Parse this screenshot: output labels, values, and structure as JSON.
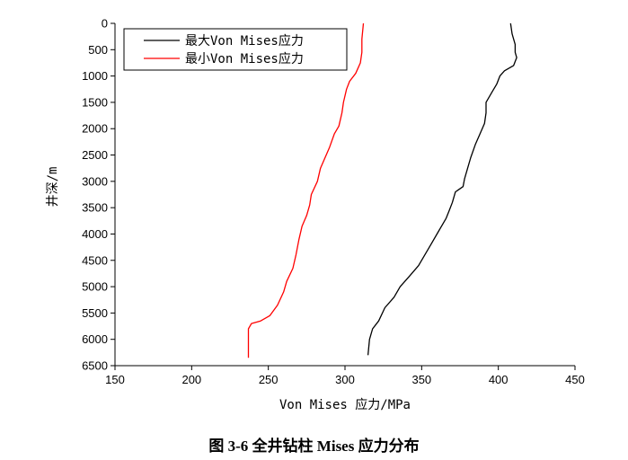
{
  "caption": "图 3-6 全井钻柱 Mises 应力分布",
  "chart_data": {
    "type": "line",
    "xlabel": "Von Mises 应力/MPa",
    "ylabel": "井深/m",
    "xlim": [
      150,
      450
    ],
    "ylim": [
      0,
      6500
    ],
    "y_inverted": true,
    "x_ticks": [
      150,
      200,
      250,
      300,
      350,
      400,
      450
    ],
    "y_ticks": [
      0,
      500,
      1000,
      1500,
      2000,
      2500,
      3000,
      3500,
      4000,
      4500,
      5000,
      5500,
      6000,
      6500
    ],
    "grid": false,
    "legend_position": "top-left",
    "series": [
      {
        "name": "最大Von Mises应力",
        "color": "#000000",
        "points": [
          [
            408,
            0
          ],
          [
            409,
            200
          ],
          [
            411,
            400
          ],
          [
            411,
            550
          ],
          [
            412,
            650
          ],
          [
            410,
            800
          ],
          [
            404,
            900
          ],
          [
            401,
            1000
          ],
          [
            399,
            1150
          ],
          [
            396,
            1300
          ],
          [
            392,
            1500
          ],
          [
            392,
            1700
          ],
          [
            391,
            1900
          ],
          [
            388,
            2100
          ],
          [
            385,
            2300
          ],
          [
            382,
            2550
          ],
          [
            380,
            2750
          ],
          [
            378,
            2950
          ],
          [
            377,
            3100
          ],
          [
            372,
            3200
          ],
          [
            370,
            3400
          ],
          [
            368,
            3550
          ],
          [
            366,
            3700
          ],
          [
            361,
            3950
          ],
          [
            356,
            4200
          ],
          [
            352,
            4400
          ],
          [
            348,
            4600
          ],
          [
            342,
            4800
          ],
          [
            336,
            5000
          ],
          [
            332,
            5200
          ],
          [
            326,
            5400
          ],
          [
            322,
            5650
          ],
          [
            318,
            5800
          ],
          [
            316,
            6000
          ],
          [
            315,
            6300
          ]
        ]
      },
      {
        "name": "最小Von Mises应力",
        "color": "#ff0000",
        "points": [
          [
            312,
            0
          ],
          [
            311,
            300
          ],
          [
            311,
            550
          ],
          [
            310,
            750
          ],
          [
            307,
            950
          ],
          [
            303,
            1100
          ],
          [
            301,
            1250
          ],
          [
            299,
            1500
          ],
          [
            298,
            1700
          ],
          [
            296,
            1950
          ],
          [
            293,
            2100
          ],
          [
            290,
            2350
          ],
          [
            287,
            2550
          ],
          [
            284,
            2750
          ],
          [
            282,
            3000
          ],
          [
            278,
            3250
          ],
          [
            277,
            3450
          ],
          [
            275,
            3650
          ],
          [
            272,
            3850
          ],
          [
            270,
            4100
          ],
          [
            268,
            4400
          ],
          [
            266,
            4650
          ],
          [
            262,
            4900
          ],
          [
            260,
            5100
          ],
          [
            256,
            5350
          ],
          [
            251,
            5550
          ],
          [
            245,
            5650
          ],
          [
            239,
            5700
          ],
          [
            237,
            5800
          ],
          [
            237,
            6000
          ],
          [
            237,
            6350
          ]
        ]
      }
    ]
  }
}
